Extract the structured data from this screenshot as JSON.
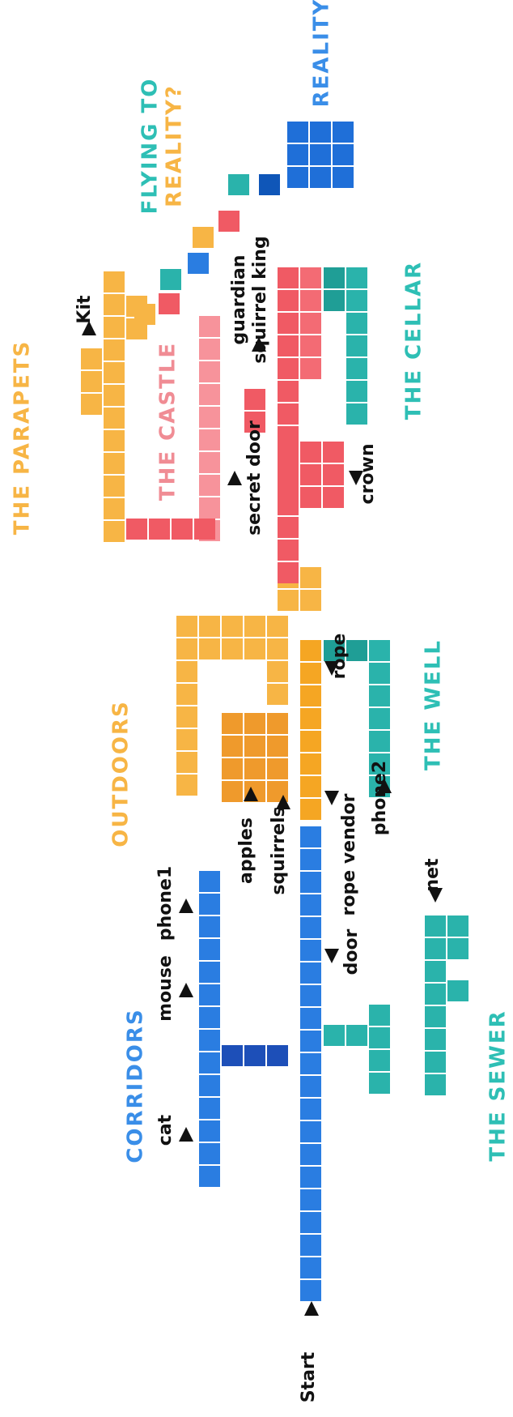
{
  "regions": [
    "THE PARAPETS",
    "OUTDOORS",
    "CORRIDORS",
    "THE CASTLE",
    "FLYING TO",
    "REALITY?",
    "REALITY",
    "THE CELLAR",
    "THE WELL",
    "THE SEWER"
  ],
  "markers": [
    "Start",
    "cat",
    "mouse",
    "phone1",
    "door",
    "apples",
    "squirrels",
    "rope vendor",
    "phone2",
    "net",
    "rope",
    "secret door",
    "crown",
    "guardian",
    "squirrel king",
    "Kit"
  ]
}
